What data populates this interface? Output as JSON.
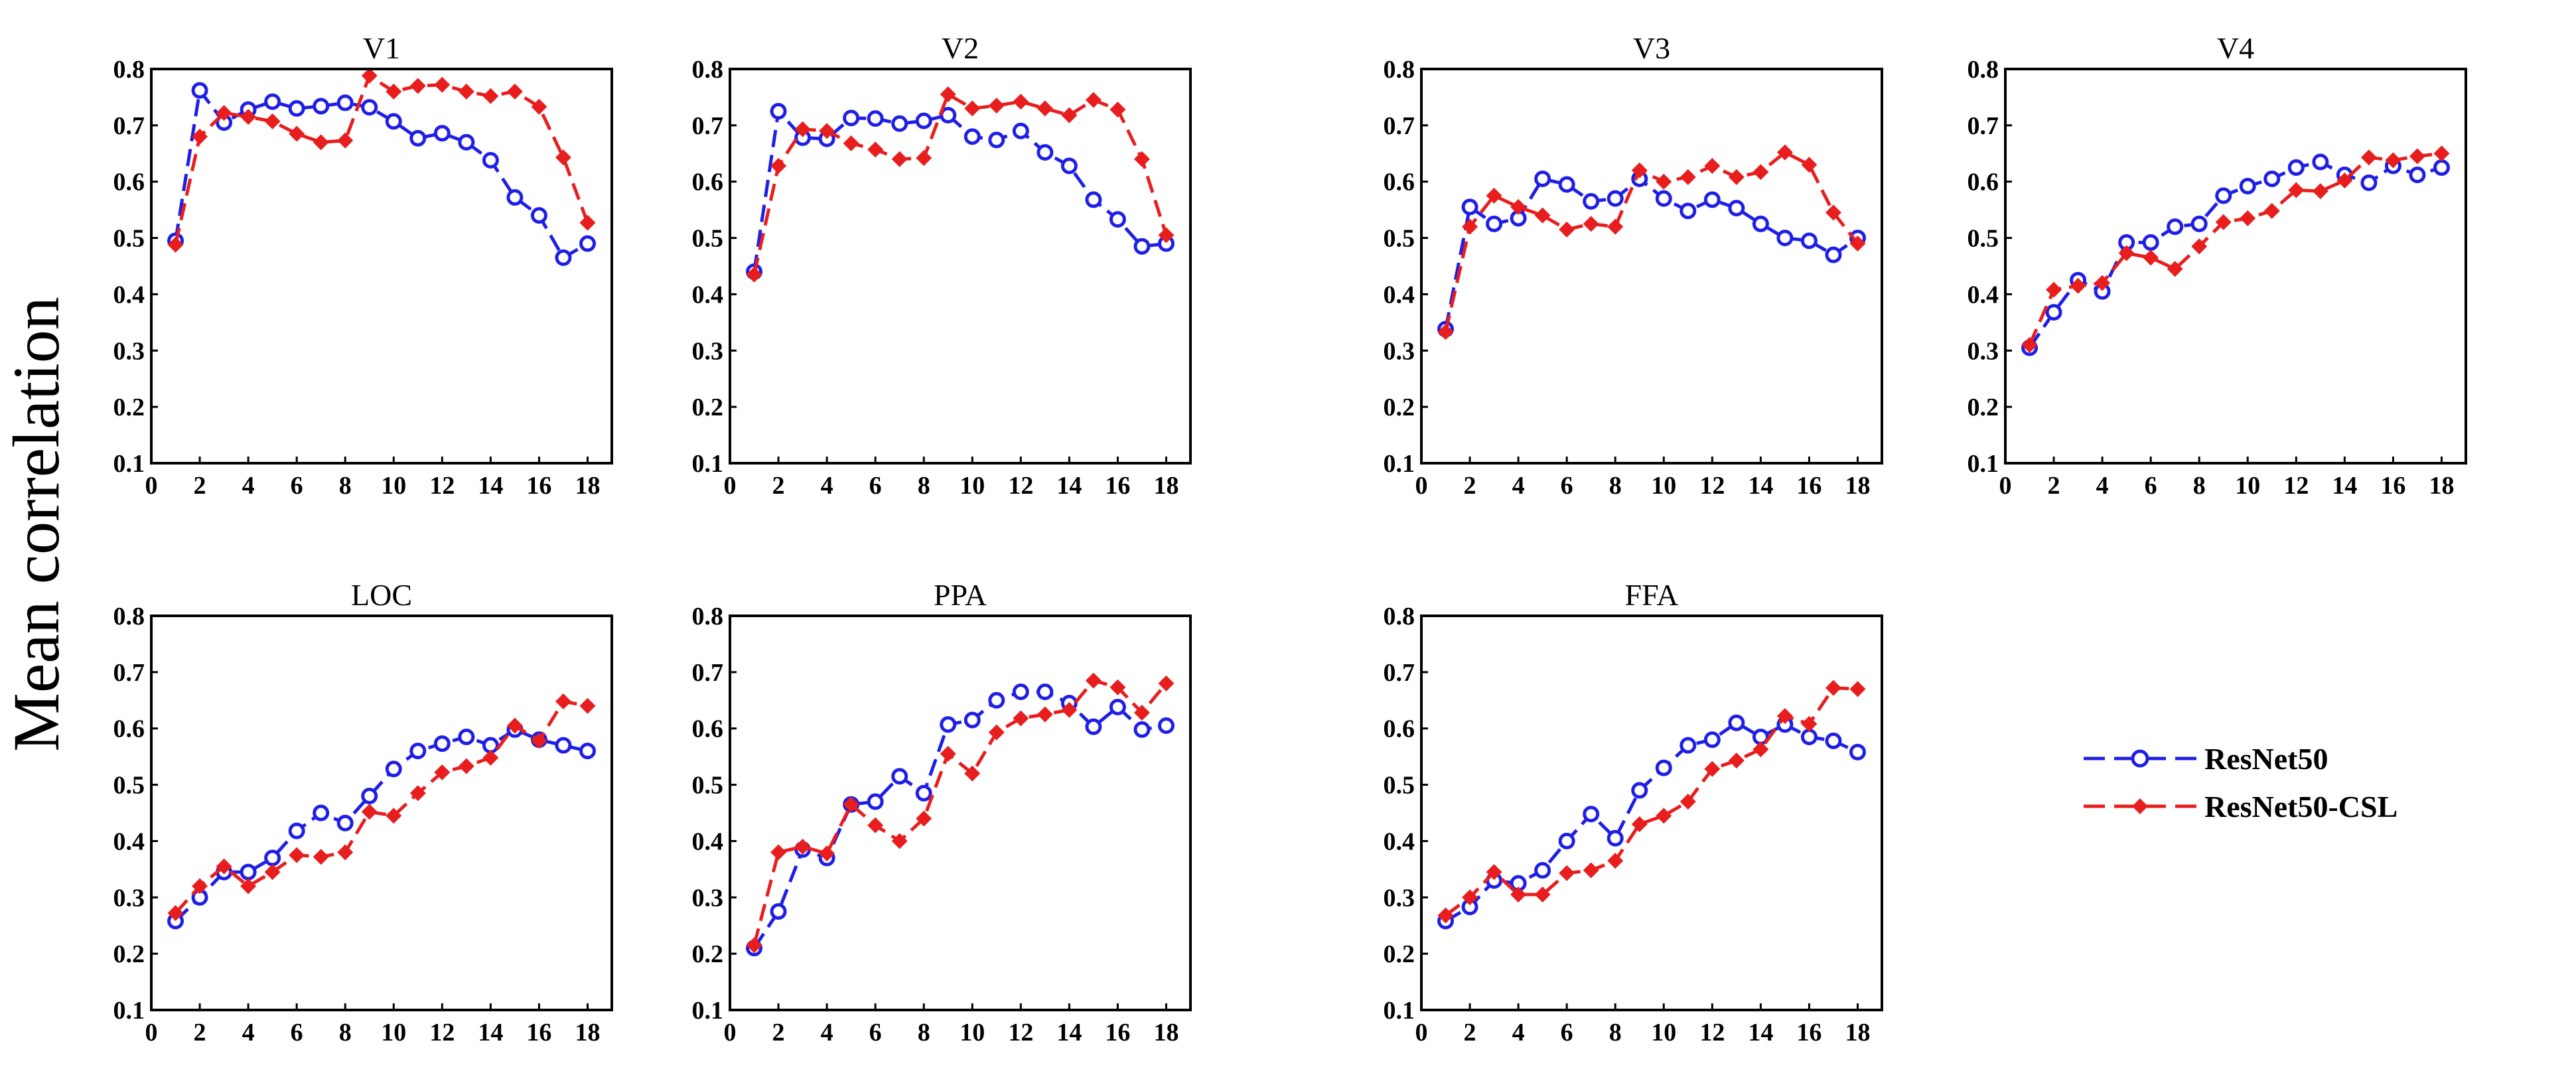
{
  "figure": {
    "ylabel": "Mean correlation",
    "legend": [
      {
        "label": "ResNet50",
        "color": "#1f1fe6",
        "marker": "open-circle",
        "line": "dashed"
      },
      {
        "label": "ResNet50-CSL",
        "color": "#e81e1e",
        "marker": "filled-diamond",
        "line": "dashed"
      }
    ]
  },
  "chart_data": [
    {
      "type": "line",
      "title": "V1",
      "x": [
        1,
        2,
        3,
        4,
        5,
        6,
        7,
        8,
        9,
        10,
        11,
        12,
        13,
        14,
        15,
        16,
        17,
        18
      ],
      "xticks": [
        0,
        2,
        4,
        6,
        8,
        10,
        12,
        14,
        16,
        18
      ],
      "xlim": [
        0,
        19
      ],
      "ylim": [
        0.1,
        0.8
      ],
      "yticks": [
        0.1,
        0.2,
        0.3,
        0.4,
        0.5,
        0.6,
        0.7,
        0.8
      ],
      "series": [
        {
          "name": "ResNet50",
          "values": [
            0.495,
            0.762,
            0.705,
            0.728,
            0.742,
            0.73,
            0.734,
            0.74,
            0.732,
            0.707,
            0.677,
            0.686,
            0.67,
            0.638,
            0.572,
            0.54,
            0.465,
            0.49
          ]
        },
        {
          "name": "ResNet50-CSL",
          "values": [
            0.488,
            0.68,
            0.722,
            0.715,
            0.707,
            0.685,
            0.67,
            0.673,
            0.788,
            0.76,
            0.77,
            0.772,
            0.76,
            0.752,
            0.76,
            0.733,
            0.643,
            0.527
          ]
        }
      ]
    },
    {
      "type": "line",
      "title": "V2",
      "x": [
        1,
        2,
        3,
        4,
        5,
        6,
        7,
        8,
        9,
        10,
        11,
        12,
        13,
        14,
        15,
        16,
        17,
        18
      ],
      "xticks": [
        0,
        2,
        4,
        6,
        8,
        10,
        12,
        14,
        16,
        18
      ],
      "xlim": [
        0,
        19
      ],
      "ylim": [
        0.1,
        0.8
      ],
      "yticks": [
        0.1,
        0.2,
        0.3,
        0.4,
        0.5,
        0.6,
        0.7,
        0.8
      ],
      "series": [
        {
          "name": "ResNet50",
          "values": [
            0.44,
            0.725,
            0.678,
            0.676,
            0.713,
            0.712,
            0.703,
            0.708,
            0.718,
            0.68,
            0.674,
            0.69,
            0.652,
            0.628,
            0.568,
            0.533,
            0.485,
            0.49
          ]
        },
        {
          "name": "ResNet50-CSL",
          "values": [
            0.435,
            0.628,
            0.693,
            0.69,
            0.668,
            0.657,
            0.64,
            0.642,
            0.755,
            0.73,
            0.735,
            0.742,
            0.73,
            0.718,
            0.745,
            0.728,
            0.64,
            0.505
          ]
        }
      ]
    },
    {
      "type": "line",
      "title": "V3",
      "x": [
        1,
        2,
        3,
        4,
        5,
        6,
        7,
        8,
        9,
        10,
        11,
        12,
        13,
        14,
        15,
        16,
        17,
        18
      ],
      "xticks": [
        0,
        2,
        4,
        6,
        8,
        10,
        12,
        14,
        16,
        18
      ],
      "xlim": [
        0,
        19
      ],
      "ylim": [
        0.1,
        0.8
      ],
      "yticks": [
        0.1,
        0.2,
        0.3,
        0.4,
        0.5,
        0.6,
        0.7,
        0.8
      ],
      "series": [
        {
          "name": "ResNet50",
          "values": [
            0.338,
            0.555,
            0.525,
            0.535,
            0.605,
            0.595,
            0.565,
            0.57,
            0.605,
            0.57,
            0.548,
            0.568,
            0.553,
            0.525,
            0.5,
            0.495,
            0.47,
            0.5
          ]
        },
        {
          "name": "ResNet50-CSL",
          "values": [
            0.333,
            0.52,
            0.575,
            0.555,
            0.54,
            0.515,
            0.525,
            0.52,
            0.62,
            0.6,
            0.608,
            0.628,
            0.608,
            0.617,
            0.652,
            0.63,
            0.545,
            0.49
          ]
        }
      ]
    },
    {
      "type": "line",
      "title": "V4",
      "x": [
        1,
        2,
        3,
        4,
        5,
        6,
        7,
        8,
        9,
        10,
        11,
        12,
        13,
        14,
        15,
        16,
        17,
        18
      ],
      "xticks": [
        0,
        2,
        4,
        6,
        8,
        10,
        12,
        14,
        16,
        18
      ],
      "xlim": [
        0,
        19
      ],
      "ylim": [
        0.1,
        0.8
      ],
      "yticks": [
        0.1,
        0.2,
        0.3,
        0.4,
        0.5,
        0.6,
        0.7,
        0.8
      ],
      "series": [
        {
          "name": "ResNet50",
          "values": [
            0.305,
            0.368,
            0.425,
            0.405,
            0.492,
            0.492,
            0.52,
            0.525,
            0.575,
            0.592,
            0.605,
            0.625,
            0.635,
            0.612,
            0.598,
            0.628,
            0.612,
            0.625
          ]
        },
        {
          "name": "ResNet50-CSL",
          "values": [
            0.31,
            0.408,
            0.415,
            0.42,
            0.473,
            0.465,
            0.445,
            0.485,
            0.528,
            0.535,
            0.548,
            0.585,
            0.583,
            0.602,
            0.643,
            0.638,
            0.645,
            0.65
          ]
        }
      ]
    },
    {
      "type": "line",
      "title": "LOC",
      "x": [
        1,
        2,
        3,
        4,
        5,
        6,
        7,
        8,
        9,
        10,
        11,
        12,
        13,
        14,
        15,
        16,
        17,
        18
      ],
      "xticks": [
        0,
        2,
        4,
        6,
        8,
        10,
        12,
        14,
        16,
        18
      ],
      "xlim": [
        0,
        19
      ],
      "ylim": [
        0.1,
        0.8
      ],
      "yticks": [
        0.1,
        0.2,
        0.3,
        0.4,
        0.5,
        0.6,
        0.7,
        0.8
      ],
      "series": [
        {
          "name": "ResNet50",
          "values": [
            0.258,
            0.3,
            0.345,
            0.345,
            0.37,
            0.418,
            0.45,
            0.432,
            0.48,
            0.528,
            0.56,
            0.573,
            0.585,
            0.57,
            0.598,
            0.58,
            0.57,
            0.56
          ]
        },
        {
          "name": "ResNet50-CSL",
          "values": [
            0.272,
            0.32,
            0.355,
            0.32,
            0.345,
            0.375,
            0.372,
            0.38,
            0.452,
            0.445,
            0.485,
            0.522,
            0.533,
            0.548,
            0.605,
            0.578,
            0.648,
            0.64
          ]
        }
      ]
    },
    {
      "type": "line",
      "title": "PPA",
      "x": [
        1,
        2,
        3,
        4,
        5,
        6,
        7,
        8,
        9,
        10,
        11,
        12,
        13,
        14,
        15,
        16,
        17,
        18
      ],
      "xticks": [
        0,
        2,
        4,
        6,
        8,
        10,
        12,
        14,
        16,
        18
      ],
      "xlim": [
        0,
        19
      ],
      "ylim": [
        0.1,
        0.8
      ],
      "yticks": [
        0.1,
        0.2,
        0.3,
        0.4,
        0.5,
        0.6,
        0.7,
        0.8
      ],
      "series": [
        {
          "name": "ResNet50",
          "values": [
            0.21,
            0.275,
            0.385,
            0.37,
            0.465,
            0.47,
            0.515,
            0.485,
            0.607,
            0.615,
            0.65,
            0.665,
            0.665,
            0.645,
            0.603,
            0.638,
            0.598,
            0.605
          ]
        },
        {
          "name": "ResNet50-CSL",
          "values": [
            0.215,
            0.38,
            0.39,
            0.378,
            0.465,
            0.428,
            0.4,
            0.44,
            0.555,
            0.52,
            0.593,
            0.618,
            0.625,
            0.633,
            0.685,
            0.673,
            0.628,
            0.68
          ]
        }
      ]
    },
    {
      "type": "line",
      "title": "FFA",
      "x": [
        1,
        2,
        3,
        4,
        5,
        6,
        7,
        8,
        9,
        10,
        11,
        12,
        13,
        14,
        15,
        16,
        17,
        18
      ],
      "xticks": [
        0,
        2,
        4,
        6,
        8,
        10,
        12,
        14,
        16,
        18
      ],
      "xlim": [
        0,
        19
      ],
      "ylim": [
        0.1,
        0.8
      ],
      "yticks": [
        0.1,
        0.2,
        0.3,
        0.4,
        0.5,
        0.6,
        0.7,
        0.8
      ],
      "series": [
        {
          "name": "ResNet50",
          "values": [
            0.258,
            0.283,
            0.33,
            0.325,
            0.348,
            0.4,
            0.448,
            0.405,
            0.49,
            0.53,
            0.57,
            0.58,
            0.61,
            0.585,
            0.607,
            0.585,
            0.578,
            0.558
          ]
        },
        {
          "name": "ResNet50-CSL",
          "values": [
            0.268,
            0.3,
            0.345,
            0.305,
            0.305,
            0.343,
            0.348,
            0.365,
            0.43,
            0.445,
            0.47,
            0.528,
            0.543,
            0.563,
            0.622,
            0.608,
            0.672,
            0.67
          ]
        }
      ]
    }
  ]
}
